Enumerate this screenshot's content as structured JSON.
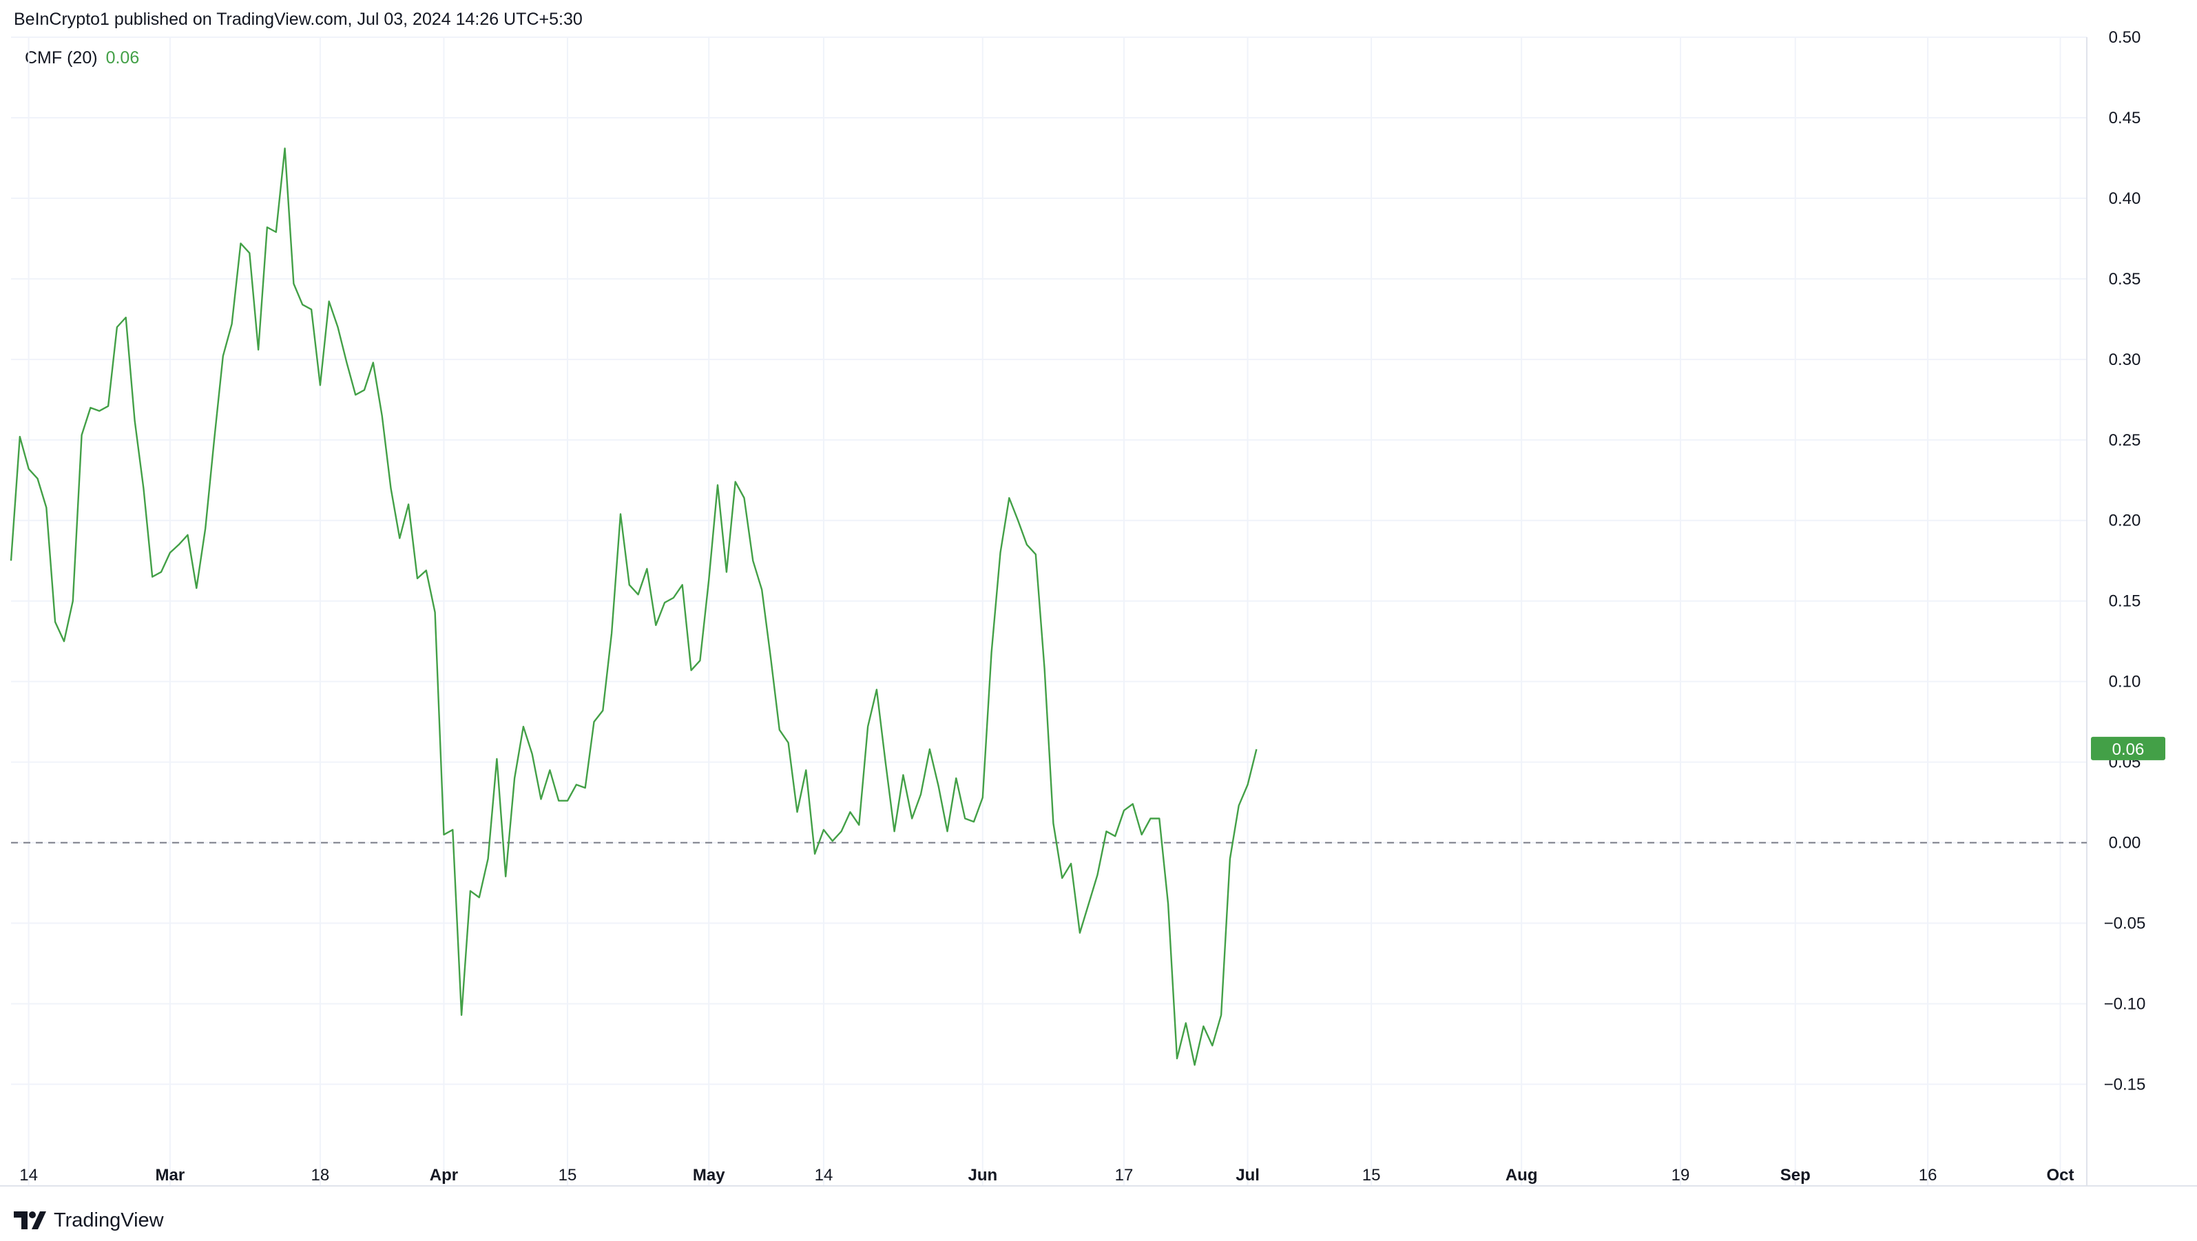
{
  "header": {
    "publish_text": "BeInCrypto1 published on TradingView.com, Jul 03, 2024 14:26 UTC+5:30"
  },
  "legend": {
    "indicator": "CMF (20)",
    "value": "0.06"
  },
  "last_value_badge": "0.06",
  "footer": {
    "brand": "TradingView",
    "logo_icon": "tradingview-logo-icon"
  },
  "colors": {
    "line": "#43a047",
    "badge": "#43a047",
    "grid": "#f0f3fa",
    "zero_line": "#787b86",
    "text": "#131722"
  },
  "chart_data": {
    "type": "line",
    "title": "",
    "xlabel": "",
    "ylabel": "",
    "ylim": [
      -0.19,
      0.5
    ],
    "y_ticks": [
      "0.50",
      "0.45",
      "0.40",
      "0.35",
      "0.30",
      "0.25",
      "0.20",
      "0.15",
      "0.10",
      "0.05",
      "0.00",
      "−0.05",
      "−0.10",
      "−0.15"
    ],
    "y_tick_values": [
      0.5,
      0.45,
      0.4,
      0.35,
      0.3,
      0.25,
      0.2,
      0.15,
      0.1,
      0.05,
      0.0,
      -0.05,
      -0.1,
      -0.15
    ],
    "x_range": [
      "2024-02-12",
      "2024-10-04"
    ],
    "x_ticks": [
      {
        "label": "14",
        "date": "2024-02-14",
        "bold": false
      },
      {
        "label": "Mar",
        "date": "2024-03-01",
        "bold": true
      },
      {
        "label": "18",
        "date": "2024-03-18",
        "bold": false
      },
      {
        "label": "Apr",
        "date": "2024-04-01",
        "bold": true
      },
      {
        "label": "15",
        "date": "2024-04-15",
        "bold": false
      },
      {
        "label": "May",
        "date": "2024-05-01",
        "bold": true
      },
      {
        "label": "14",
        "date": "2024-05-14",
        "bold": false
      },
      {
        "label": "Jun",
        "date": "2024-06-01",
        "bold": true
      },
      {
        "label": "17",
        "date": "2024-06-17",
        "bold": false
      },
      {
        "label": "Jul",
        "date": "2024-07-01",
        "bold": true
      },
      {
        "label": "15",
        "date": "2024-07-15",
        "bold": false
      },
      {
        "label": "Aug",
        "date": "2024-08-01",
        "bold": true
      },
      {
        "label": "19",
        "date": "2024-08-19",
        "bold": false
      },
      {
        "label": "Sep",
        "date": "2024-09-01",
        "bold": true
      },
      {
        "label": "16",
        "date": "2024-09-16",
        "bold": false
      },
      {
        "label": "Oct",
        "date": "2024-10-01",
        "bold": true
      }
    ],
    "zero_line": 0.0,
    "grid": true,
    "series": [
      {
        "name": "CMF (20)",
        "points": [
          [
            "2024-02-12",
            0.175
          ],
          [
            "2024-02-13",
            0.252
          ],
          [
            "2024-02-14",
            0.232
          ],
          [
            "2024-02-15",
            0.226
          ],
          [
            "2024-02-16",
            0.208
          ],
          [
            "2024-02-17",
            0.137
          ],
          [
            "2024-02-18",
            0.125
          ],
          [
            "2024-02-19",
            0.15
          ],
          [
            "2024-02-20",
            0.253
          ],
          [
            "2024-02-21",
            0.27
          ],
          [
            "2024-02-22",
            0.268
          ],
          [
            "2024-02-23",
            0.271
          ],
          [
            "2024-02-24",
            0.32
          ],
          [
            "2024-02-25",
            0.326
          ],
          [
            "2024-02-26",
            0.262
          ],
          [
            "2024-02-27",
            0.22
          ],
          [
            "2024-02-28",
            0.165
          ],
          [
            "2024-02-29",
            0.168
          ],
          [
            "2024-03-01",
            0.18
          ],
          [
            "2024-03-02",
            0.185
          ],
          [
            "2024-03-03",
            0.191
          ],
          [
            "2024-03-04",
            0.158
          ],
          [
            "2024-03-05",
            0.195
          ],
          [
            "2024-03-06",
            0.25
          ],
          [
            "2024-03-07",
            0.302
          ],
          [
            "2024-03-08",
            0.322
          ],
          [
            "2024-03-09",
            0.372
          ],
          [
            "2024-03-10",
            0.366
          ],
          [
            "2024-03-11",
            0.306
          ],
          [
            "2024-03-12",
            0.382
          ],
          [
            "2024-03-13",
            0.379
          ],
          [
            "2024-03-14",
            0.431
          ],
          [
            "2024-03-15",
            0.347
          ],
          [
            "2024-03-16",
            0.334
          ],
          [
            "2024-03-17",
            0.331
          ],
          [
            "2024-03-18",
            0.284
          ],
          [
            "2024-03-19",
            0.336
          ],
          [
            "2024-03-20",
            0.32
          ],
          [
            "2024-03-21",
            0.298
          ],
          [
            "2024-03-22",
            0.278
          ],
          [
            "2024-03-23",
            0.281
          ],
          [
            "2024-03-24",
            0.298
          ],
          [
            "2024-03-25",
            0.265
          ],
          [
            "2024-03-26",
            0.22
          ],
          [
            "2024-03-27",
            0.189
          ],
          [
            "2024-03-28",
            0.21
          ],
          [
            "2024-03-29",
            0.164
          ],
          [
            "2024-03-30",
            0.169
          ],
          [
            "2024-03-31",
            0.143
          ],
          [
            "2024-04-01",
            0.005
          ],
          [
            "2024-04-02",
            0.008
          ],
          [
            "2024-04-03",
            -0.107
          ],
          [
            "2024-04-04",
            -0.03
          ],
          [
            "2024-04-05",
            -0.034
          ],
          [
            "2024-04-06",
            -0.01
          ],
          [
            "2024-04-07",
            0.052
          ],
          [
            "2024-04-08",
            -0.021
          ],
          [
            "2024-04-09",
            0.04
          ],
          [
            "2024-04-10",
            0.072
          ],
          [
            "2024-04-11",
            0.055
          ],
          [
            "2024-04-12",
            0.027
          ],
          [
            "2024-04-13",
            0.045
          ],
          [
            "2024-04-14",
            0.026
          ],
          [
            "2024-04-15",
            0.026
          ],
          [
            "2024-04-16",
            0.036
          ],
          [
            "2024-04-17",
            0.034
          ],
          [
            "2024-04-18",
            0.075
          ],
          [
            "2024-04-19",
            0.082
          ],
          [
            "2024-04-20",
            0.13
          ],
          [
            "2024-04-21",
            0.204
          ],
          [
            "2024-04-22",
            0.16
          ],
          [
            "2024-04-23",
            0.154
          ],
          [
            "2024-04-24",
            0.17
          ],
          [
            "2024-04-25",
            0.135
          ],
          [
            "2024-04-26",
            0.149
          ],
          [
            "2024-04-27",
            0.152
          ],
          [
            "2024-04-28",
            0.16
          ],
          [
            "2024-04-29",
            0.107
          ],
          [
            "2024-04-30",
            0.113
          ],
          [
            "2024-05-01",
            0.163
          ],
          [
            "2024-05-02",
            0.222
          ],
          [
            "2024-05-03",
            0.168
          ],
          [
            "2024-05-04",
            0.224
          ],
          [
            "2024-05-05",
            0.214
          ],
          [
            "2024-05-06",
            0.175
          ],
          [
            "2024-05-07",
            0.157
          ],
          [
            "2024-05-08",
            0.115
          ],
          [
            "2024-05-09",
            0.07
          ],
          [
            "2024-05-10",
            0.062
          ],
          [
            "2024-05-11",
            0.019
          ],
          [
            "2024-05-12",
            0.045
          ],
          [
            "2024-05-13",
            -0.007
          ],
          [
            "2024-05-14",
            0.008
          ],
          [
            "2024-05-15",
            0.001
          ],
          [
            "2024-05-16",
            0.007
          ],
          [
            "2024-05-17",
            0.019
          ],
          [
            "2024-05-18",
            0.011
          ],
          [
            "2024-05-19",
            0.072
          ],
          [
            "2024-05-20",
            0.095
          ],
          [
            "2024-05-21",
            0.05
          ],
          [
            "2024-05-22",
            0.007
          ],
          [
            "2024-05-23",
            0.042
          ],
          [
            "2024-05-24",
            0.015
          ],
          [
            "2024-05-25",
            0.03
          ],
          [
            "2024-05-26",
            0.058
          ],
          [
            "2024-05-27",
            0.035
          ],
          [
            "2024-05-28",
            0.007
          ],
          [
            "2024-05-29",
            0.04
          ],
          [
            "2024-05-30",
            0.015
          ],
          [
            "2024-05-31",
            0.013
          ],
          [
            "2024-06-01",
            0.028
          ],
          [
            "2024-06-02",
            0.118
          ],
          [
            "2024-06-03",
            0.18
          ],
          [
            "2024-06-04",
            0.214
          ],
          [
            "2024-06-05",
            0.2
          ],
          [
            "2024-06-06",
            0.185
          ],
          [
            "2024-06-07",
            0.179
          ],
          [
            "2024-06-08",
            0.108
          ],
          [
            "2024-06-09",
            0.012
          ],
          [
            "2024-06-10",
            -0.022
          ],
          [
            "2024-06-11",
            -0.013
          ],
          [
            "2024-06-12",
            -0.056
          ],
          [
            "2024-06-13",
            -0.038
          ],
          [
            "2024-06-14",
            -0.02
          ],
          [
            "2024-06-15",
            0.007
          ],
          [
            "2024-06-16",
            0.004
          ],
          [
            "2024-06-17",
            0.02
          ],
          [
            "2024-06-18",
            0.024
          ],
          [
            "2024-06-19",
            0.005
          ],
          [
            "2024-06-20",
            0.015
          ],
          [
            "2024-06-21",
            0.015
          ],
          [
            "2024-06-22",
            -0.038
          ],
          [
            "2024-06-23",
            -0.134
          ],
          [
            "2024-06-24",
            -0.112
          ],
          [
            "2024-06-25",
            -0.138
          ],
          [
            "2024-06-26",
            -0.114
          ],
          [
            "2024-06-27",
            -0.126
          ],
          [
            "2024-06-28",
            -0.107
          ],
          [
            "2024-06-29",
            -0.01
          ],
          [
            "2024-06-30",
            0.023
          ],
          [
            "2024-07-01",
            0.036
          ],
          [
            "2024-07-02",
            0.058
          ]
        ]
      }
    ]
  }
}
